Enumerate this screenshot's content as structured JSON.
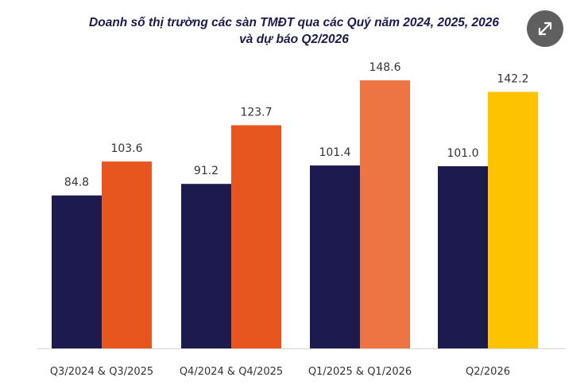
{
  "chart_data": {
    "type": "bar",
    "title_line1": "Doanh số thị trường các sàn TMĐT qua các Quý năm 2024, 2025, 2026",
    "title_line2": "và dự báo Q2/2026",
    "categories": [
      "Q3/2024 & Q3/2025",
      "Q4/2024 & Q4/2025",
      "Q1/2025 & Q1/2026",
      "Q2/2026"
    ],
    "series": [
      {
        "values": [
          84.8,
          91.2,
          101.4,
          101.0
        ],
        "color": "#1c1a4e"
      },
      {
        "values": [
          103.6,
          123.7,
          148.6,
          142.2
        ],
        "colors": [
          "#e85620",
          "#e85620",
          "#ed7443",
          "#fdc200"
        ]
      }
    ],
    "ylim": [
      0,
      160
    ],
    "grid": false,
    "legend": "none"
  },
  "ui": {
    "expand_icon": "expand-icon"
  }
}
